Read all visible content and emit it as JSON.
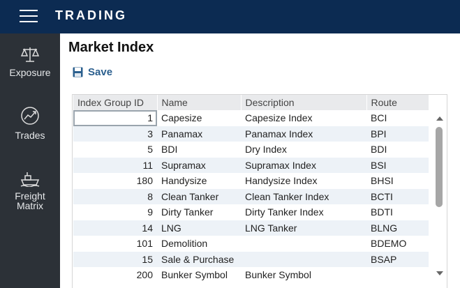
{
  "header": {
    "title": "TRADING"
  },
  "sidebar": {
    "items": [
      "Exposure",
      "Trades",
      "Freight Matrix"
    ]
  },
  "page": {
    "title": "Market Index",
    "save": "Save"
  },
  "table": {
    "columns": [
      "Index Group ID",
      "Name",
      "Description",
      "Route"
    ],
    "rows": [
      [
        1,
        "Capesize",
        "Capesize Index",
        "BCI"
      ],
      [
        3,
        "Panamax",
        "Panamax Index",
        "BPI"
      ],
      [
        5,
        "BDI",
        "Dry Index",
        "BDI"
      ],
      [
        11,
        "Supramax",
        "Supramax Index",
        "BSI"
      ],
      [
        180,
        "Handysize",
        "Handysize Index",
        "BHSI"
      ],
      [
        8,
        "Clean Tanker",
        "Clean Tanker Index",
        "BCTI"
      ],
      [
        9,
        "Dirty Tanker",
        "Dirty Tanker Index",
        "BDTI"
      ],
      [
        14,
        "LNG",
        "LNG Tanker",
        "BLNG"
      ],
      [
        101,
        "Demolition",
        null,
        "BDEMO"
      ],
      [
        15,
        "Sale & Purchase",
        null,
        "BSAP"
      ],
      [
        200,
        "Bunker Symbol",
        "Bunker Symbol",
        null
      ]
    ]
  }
}
